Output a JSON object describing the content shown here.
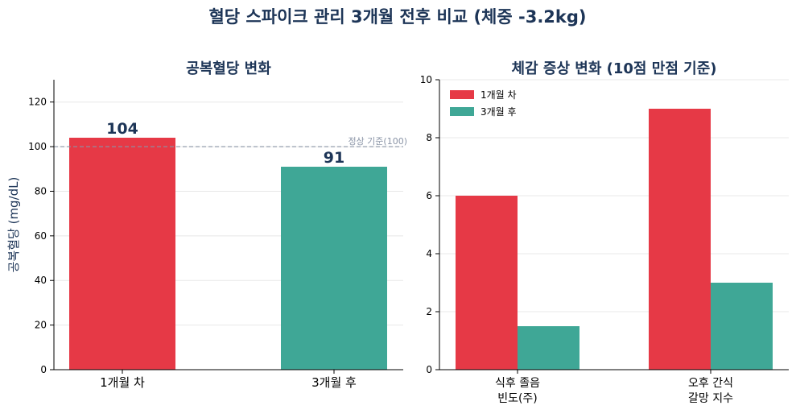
{
  "title": "혈당 스파이크 관리 3개월 전후 비교 (체중 -3.2kg)",
  "colors": {
    "before": "#e63946",
    "after": "#3fa796",
    "title": "#1d3557",
    "ref": "#8a94a6",
    "axis": "#000000"
  },
  "chart_data": [
    {
      "type": "bar",
      "title": "공복혈당 변화",
      "ylabel": "공복혈당 (mg/dL)",
      "xlabel": "",
      "categories": [
        "1개월 차",
        "3개월 후"
      ],
      "values": [
        104,
        91
      ],
      "data_labels": [
        "104",
        "91"
      ],
      "ylim": [
        0,
        130
      ],
      "yticks": [
        0,
        20,
        40,
        60,
        80,
        100,
        120
      ],
      "reference_line": {
        "value": 100,
        "label": "정상 기준(100)"
      },
      "grid": true
    },
    {
      "type": "bar",
      "title": "체감 증상 변화 (10점 만점 기준)",
      "xlabel": "",
      "ylabel": "",
      "categories": [
        [
          "식후 졸음",
          "빈도(주)"
        ],
        [
          "오후 간식",
          "갈망 지수"
        ]
      ],
      "series": [
        {
          "name": "1개월 차",
          "values": [
            6,
            9
          ]
        },
        {
          "name": "3개월 후",
          "values": [
            1.5,
            3
          ]
        }
      ],
      "ylim": [
        0,
        10
      ],
      "yticks": [
        0,
        2,
        4,
        6,
        8,
        10
      ],
      "legend": "top-left",
      "grid": true
    }
  ]
}
